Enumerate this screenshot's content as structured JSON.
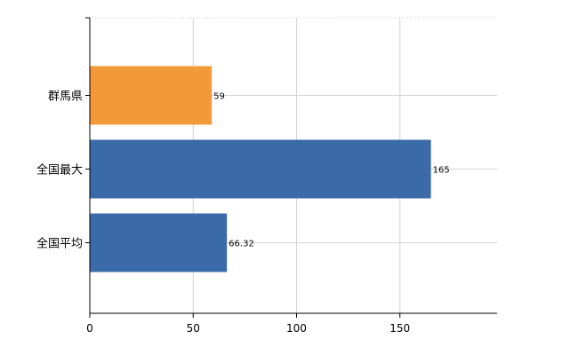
{
  "chart_data": {
    "type": "bar",
    "orientation": "horizontal",
    "categories": [
      "群馬県",
      "全国最大",
      "全国平均"
    ],
    "values": [
      59,
      165,
      66.32
    ],
    "value_labels": [
      "59",
      "165",
      "66.32"
    ],
    "bar_colors": [
      "#f2993a",
      "#3b6aa8",
      "#3b6aa8"
    ],
    "xlim": [
      0,
      197
    ],
    "xticks": [
      0,
      50,
      100,
      150
    ],
    "xtick_labels": [
      "0",
      "50",
      "100",
      "150"
    ],
    "grid": true,
    "legend": "none",
    "title": "",
    "xlabel": "",
    "ylabel": ""
  }
}
